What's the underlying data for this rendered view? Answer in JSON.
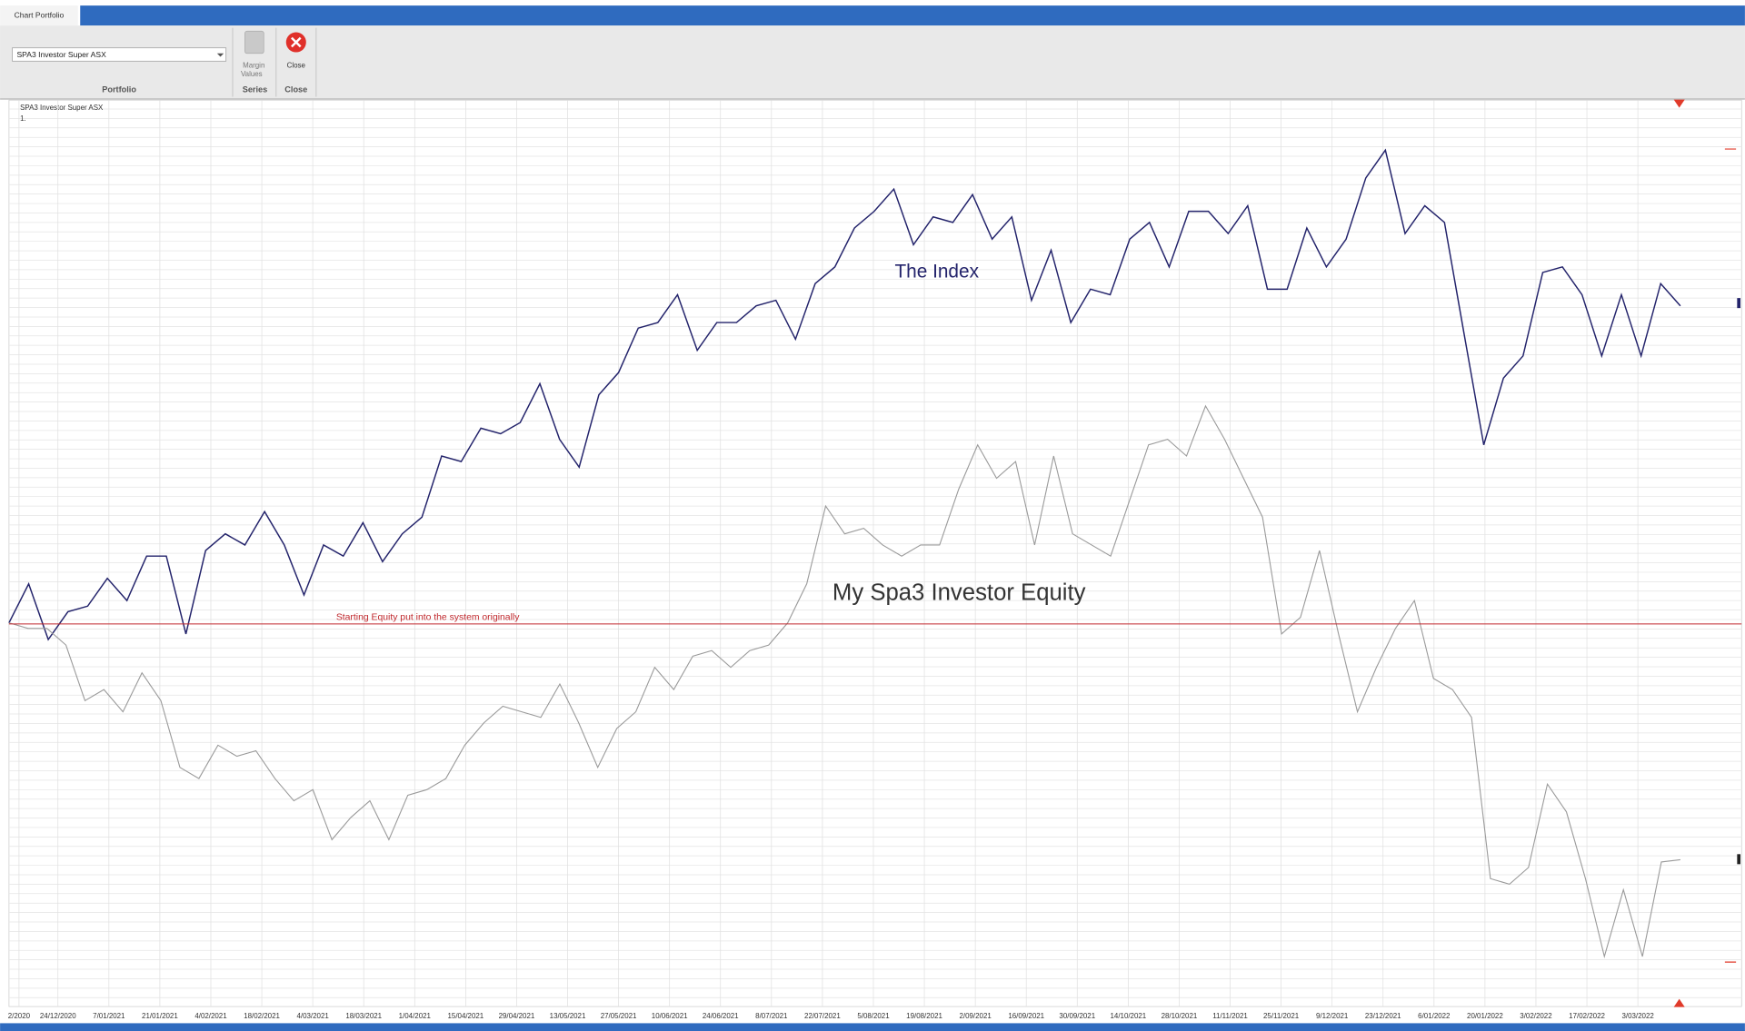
{
  "app": {
    "tab": "Chart Portfolio",
    "ribbon": {
      "portfolio_select": "SPA3 Investor Super ASX",
      "portfolio_group": "Portfolio",
      "margin_button": [
        "Margin",
        "Values"
      ],
      "series_group": "Series",
      "close_button": "Close",
      "close_group": "Close"
    }
  },
  "chart_data": {
    "type": "line",
    "title": "SPA3 Investor Super ASX",
    "subtitle": "1.",
    "x_labels": [
      "2/2020",
      "24/12/2020",
      "7/01/2021",
      "21/01/2021",
      "4/02/2021",
      "18/02/2021",
      "4/03/2021",
      "18/03/2021",
      "1/04/2021",
      "15/04/2021",
      "29/04/2021",
      "13/05/2021",
      "27/05/2021",
      "10/06/2021",
      "24/06/2021",
      "8/07/2021",
      "22/07/2021",
      "5/08/2021",
      "19/08/2021",
      "2/09/2021",
      "16/09/2021",
      "30/09/2021",
      "14/10/2021",
      "28/10/2021",
      "11/11/2021",
      "25/11/2021",
      "9/12/2021",
      "23/12/2021",
      "6/01/2022",
      "20/01/2022",
      "3/02/2022",
      "17/02/2022",
      "3/03/2022"
    ],
    "series": [
      {
        "name": "The Index",
        "color": "#23236b",
        "values": [
          345,
          380,
          330,
          355,
          360,
          385,
          365,
          405,
          405,
          335,
          410,
          425,
          415,
          445,
          415,
          370,
          415,
          405,
          435,
          400,
          425,
          440,
          495,
          490,
          520,
          515,
          525,
          560,
          510,
          485,
          550,
          570,
          610,
          615,
          640,
          590,
          615,
          615,
          630,
          635,
          600,
          650,
          665,
          700,
          715,
          735,
          685,
          710,
          705,
          730,
          690,
          710,
          635,
          680,
          615,
          645,
          640,
          690,
          705,
          665,
          715,
          715,
          695,
          720,
          645,
          645,
          700,
          665,
          690,
          745,
          770,
          695,
          720,
          705,
          605,
          505,
          565,
          585,
          660,
          665,
          640,
          585,
          640,
          585,
          650,
          630
        ]
      },
      {
        "name": "My Spa3 Investor Equity",
        "color": "#9a9a9a",
        "values": [
          345,
          340,
          340,
          325,
          275,
          285,
          265,
          300,
          275,
          215,
          205,
          235,
          225,
          230,
          205,
          185,
          195,
          150,
          170,
          185,
          150,
          190,
          195,
          205,
          235,
          255,
          270,
          265,
          260,
          290,
          255,
          215,
          250,
          265,
          305,
          285,
          315,
          320,
          305,
          320,
          325,
          345,
          380,
          450,
          425,
          430,
          415,
          405,
          415,
          415,
          465,
          505,
          475,
          490,
          415,
          495,
          425,
          415,
          405,
          455,
          505,
          510,
          495,
          540,
          510,
          475,
          440,
          335,
          350,
          410,
          335,
          265,
          305,
          340,
          365,
          295,
          285,
          260,
          115,
          110,
          125,
          200,
          175,
          115,
          45,
          105,
          45,
          130,
          132
        ]
      }
    ],
    "reference_line": {
      "label": "Starting Equity put into the system originally",
      "value": 344,
      "color": "#c0282d"
    },
    "ylim": [
      0,
      815
    ],
    "grid": true
  }
}
